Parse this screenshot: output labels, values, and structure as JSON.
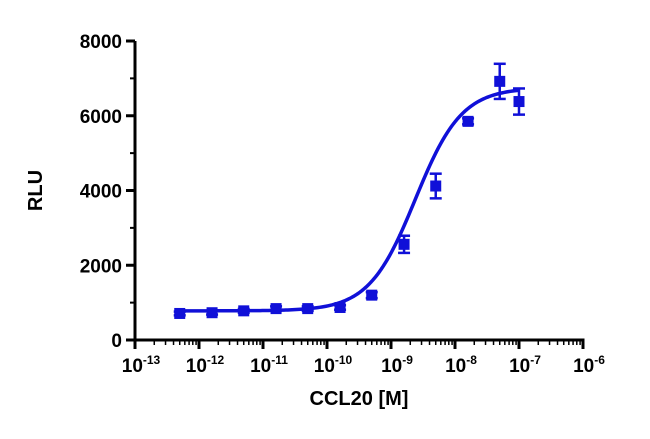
{
  "chart_data": {
    "type": "scatter",
    "xlabel": "CCL20 [M]",
    "ylabel": "RLU",
    "x_scale": "log10",
    "xlim": [
      1e-13,
      1e-06
    ],
    "ylim": [
      0,
      8000
    ],
    "x_ticks": [
      {
        "value": 1e-13,
        "base": "10",
        "exp": "-13"
      },
      {
        "value": 1e-12,
        "base": "10",
        "exp": "-12"
      },
      {
        "value": 1e-11,
        "base": "10",
        "exp": "-11"
      },
      {
        "value": 1e-10,
        "base": "10",
        "exp": "-10"
      },
      {
        "value": 1e-09,
        "base": "10",
        "exp": "-9"
      },
      {
        "value": 1e-08,
        "base": "10",
        "exp": "-8"
      },
      {
        "value": 1e-07,
        "base": "10",
        "exp": "-7"
      },
      {
        "value": 1e-06,
        "base": "10",
        "exp": "-6"
      }
    ],
    "y_ticks": [
      {
        "value": 0,
        "label": "0"
      },
      {
        "value": 2000,
        "label": "2000"
      },
      {
        "value": 4000,
        "label": "4000"
      },
      {
        "value": 6000,
        "label": "6000"
      },
      {
        "value": 8000,
        "label": "8000"
      }
    ],
    "series": [
      {
        "color": "#1010d8",
        "marker": "square",
        "points": [
          {
            "x": 5e-13,
            "y": 710,
            "err": 50
          },
          {
            "x": 1.6e-12,
            "y": 730,
            "err": 50
          },
          {
            "x": 5e-12,
            "y": 780,
            "err": 50
          },
          {
            "x": 1.6e-11,
            "y": 840,
            "err": 60
          },
          {
            "x": 5e-11,
            "y": 840,
            "err": 60
          },
          {
            "x": 1.6e-10,
            "y": 870,
            "err": 60
          },
          {
            "x": 5e-10,
            "y": 1200,
            "err": 80
          },
          {
            "x": 1.6e-09,
            "y": 2560,
            "err": 230
          },
          {
            "x": 5e-09,
            "y": 4120,
            "err": 330
          },
          {
            "x": 1.6e-08,
            "y": 5850,
            "err": 80
          },
          {
            "x": 5e-08,
            "y": 6920,
            "err": 470
          },
          {
            "x": 1e-07,
            "y": 6380,
            "err": 350
          }
        ],
        "fit": {
          "model": "four-parameter logistic",
          "bottom": 780,
          "top": 6750,
          "logEC50": -8.62,
          "hill": 1.2,
          "x_from": 5e-13,
          "x_to": 1e-07
        }
      }
    ],
    "grid": false,
    "legend": "none"
  }
}
